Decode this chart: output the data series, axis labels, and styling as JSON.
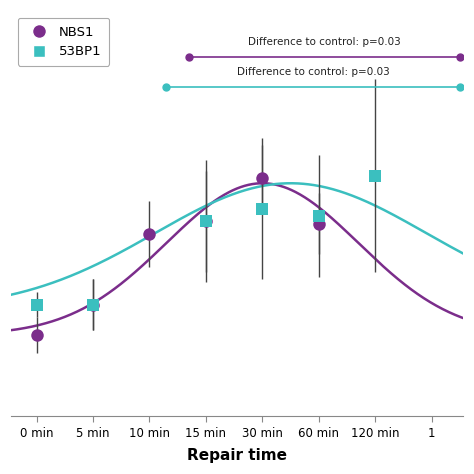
{
  "x_indices": [
    0,
    1,
    2,
    3,
    4,
    5,
    6,
    7
  ],
  "x_tick_labels": [
    "0 min",
    "5 min",
    "10 min",
    "15 min",
    "30 min",
    "60 min",
    "120 min",
    "1"
  ],
  "nbs1_x_idx": [
    0,
    1,
    2,
    3,
    4,
    5
  ],
  "nbs1_y": [
    0.1,
    0.22,
    0.5,
    0.55,
    0.72,
    0.54
  ],
  "nbs1_yerr": [
    0.07,
    0.1,
    0.13,
    0.2,
    0.13,
    0.12
  ],
  "nbs1_color": "#7B2D8B",
  "nbs1_marker": "o",
  "bp1_x_idx": [
    0,
    1,
    3,
    4,
    5,
    6
  ],
  "bp1_y": [
    0.22,
    0.22,
    0.55,
    0.6,
    0.57,
    0.73
  ],
  "bp1_yerr": [
    0.05,
    0.1,
    0.24,
    0.28,
    0.24,
    0.38
  ],
  "bp1_color": "#3bbfbf",
  "bp1_marker": "s",
  "nbs1_curve_color": "#7B2D8B",
  "bp1_curve_color": "#3bbfbf",
  "annot_nbs1_text": "Difference to control: p=0.03",
  "annot_bp1_text": "Difference to control: p=0.03",
  "legend_nbs1": "NBS1",
  "legend_bp1": "53BP1",
  "ylim": [
    -0.22,
    1.38
  ],
  "xlim": [
    -0.45,
    7.55
  ],
  "xlabel": "Repair time",
  "background_color": "#ffffff"
}
